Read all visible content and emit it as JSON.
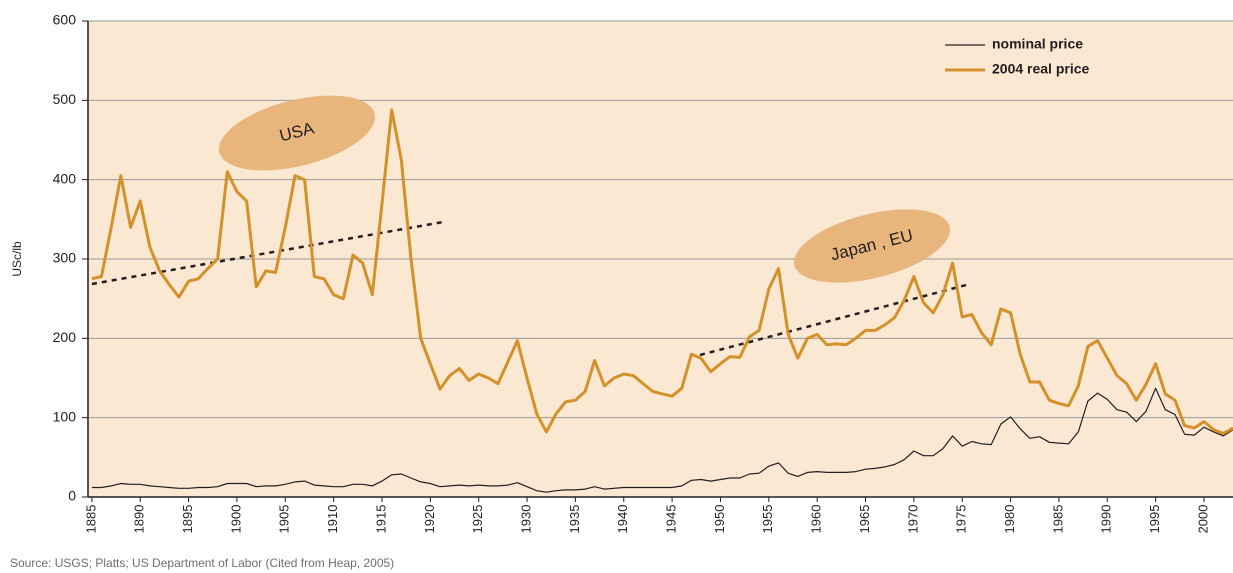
{
  "chart_data": {
    "type": "line",
    "y_label": "USc/lb",
    "source": "Source: USGS; Platts; US Department of Labor (Cited from Heap, 2005)",
    "annotations": [
      "USA",
      "Japan , EU"
    ],
    "legend": "top right",
    "grid": true,
    "xlim": [
      1884.6,
      2003
    ],
    "ylim": [
      0,
      600
    ],
    "yticks": [
      0,
      100,
      200,
      300,
      400,
      500,
      600
    ],
    "xticks": [
      1885,
      1890,
      1895,
      1900,
      1905,
      1910,
      1915,
      1920,
      1925,
      1930,
      1935,
      1940,
      1945,
      1950,
      1955,
      1960,
      1965,
      1970,
      1975,
      1980,
      1985,
      1990,
      1995,
      2000
    ],
    "x": [
      1885,
      1886,
      1887,
      1888,
      1889,
      1890,
      1891,
      1892,
      1893,
      1894,
      1895,
      1896,
      1897,
      1898,
      1899,
      1900,
      1901,
      1902,
      1903,
      1904,
      1905,
      1906,
      1907,
      1908,
      1909,
      1910,
      1911,
      1912,
      1913,
      1914,
      1915,
      1916,
      1917,
      1918,
      1919,
      1920,
      1921,
      1922,
      1923,
      1924,
      1925,
      1926,
      1927,
      1928,
      1929,
      1930,
      1931,
      1932,
      1933,
      1934,
      1935,
      1936,
      1937,
      1938,
      1939,
      1940,
      1941,
      1942,
      1943,
      1944,
      1945,
      1946,
      1947,
      1948,
      1949,
      1950,
      1951,
      1952,
      1953,
      1954,
      1955,
      1956,
      1957,
      1958,
      1959,
      1960,
      1961,
      1962,
      1963,
      1964,
      1965,
      1966,
      1967,
      1968,
      1969,
      1970,
      1971,
      1972,
      1973,
      1974,
      1975,
      1976,
      1977,
      1978,
      1979,
      1980,
      1981,
      1982,
      1983,
      1984,
      1985,
      1986,
      1987,
      1988,
      1989,
      1990,
      1991,
      1992,
      1993,
      1994,
      1995,
      1996,
      1997,
      1998,
      1999,
      2000,
      2001,
      2002,
      2003
    ],
    "series": [
      {
        "name": "nominal price",
        "color": "#231f20",
        "width": 1.2,
        "values": [
          12,
          12,
          14,
          17,
          16,
          16,
          14,
          13,
          12,
          11,
          11,
          12,
          12,
          13,
          17,
          17,
          17,
          13,
          14,
          14,
          16,
          19,
          20,
          15,
          14,
          13,
          13,
          16,
          16,
          14,
          20,
          28,
          29,
          24,
          19,
          17,
          13,
          14,
          15,
          14,
          15,
          14,
          14,
          15,
          18,
          13,
          8,
          6,
          8,
          9,
          9,
          10,
          13,
          10,
          11,
          12,
          12,
          12,
          12,
          12,
          12,
          14,
          21,
          22,
          20,
          22,
          24,
          24,
          29,
          30,
          39,
          43,
          30,
          26,
          31,
          32,
          31,
          31,
          31,
          32,
          35,
          36,
          38,
          41,
          47,
          58,
          52,
          52,
          61,
          77,
          64,
          70,
          67,
          66,
          92,
          101,
          86,
          74,
          76,
          69,
          68,
          67,
          82,
          121,
          131,
          123,
          110,
          107,
          95,
          108,
          137,
          110,
          104,
          79,
          78,
          88,
          82,
          77,
          85
        ]
      },
      {
        "name": "2004 real price",
        "color": "#d4912a",
        "width": 3,
        "values": [
          275,
          278,
          340,
          405,
          340,
          373,
          315,
          285,
          268,
          252,
          272,
          275,
          288,
          300,
          410,
          385,
          373,
          265,
          285,
          283,
          340,
          405,
          400,
          278,
          275,
          255,
          250,
          305,
          295,
          255,
          370,
          488,
          425,
          300,
          200,
          168,
          136,
          153,
          162,
          147,
          155,
          150,
          143,
          170,
          197,
          150,
          105,
          82,
          105,
          120,
          122,
          133,
          172,
          140,
          150,
          155,
          153,
          143,
          133,
          130,
          127,
          137,
          180,
          175,
          158,
          168,
          177,
          176,
          202,
          210,
          262,
          288,
          205,
          175,
          200,
          205,
          192,
          193,
          192,
          200,
          210,
          210,
          217,
          226,
          248,
          278,
          245,
          232,
          255,
          295,
          227,
          230,
          207,
          192,
          237,
          232,
          180,
          145,
          145,
          122,
          118,
          115,
          140,
          190,
          197,
          175,
          153,
          143,
          122,
          142,
          168,
          130,
          122,
          90,
          87,
          95,
          85,
          80,
          87
        ]
      }
    ]
  }
}
